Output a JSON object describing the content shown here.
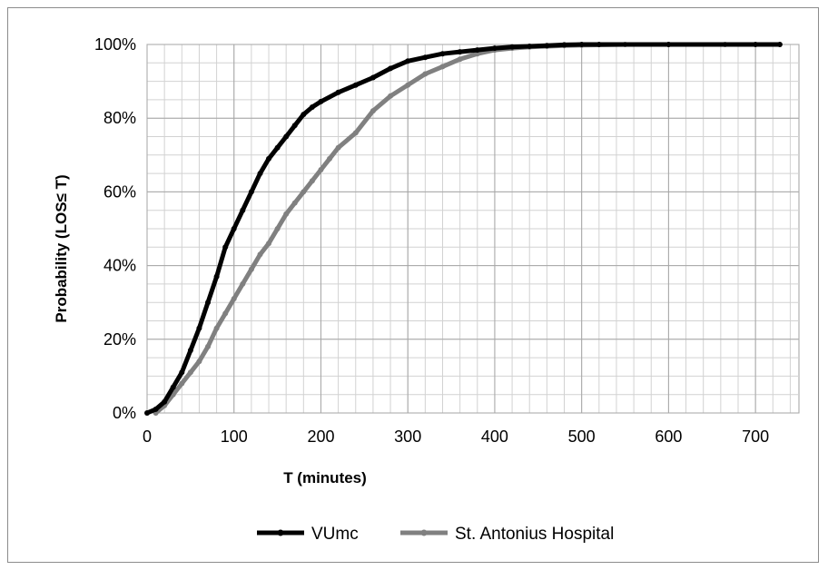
{
  "chart_data": {
    "type": "line",
    "title": "",
    "xlabel": "T (minutes)",
    "ylabel": "Probability (LOS≤ T)",
    "xlim": [
      0,
      750
    ],
    "ylim": [
      0,
      1
    ],
    "x_ticks": [
      0,
      100,
      200,
      300,
      400,
      500,
      600,
      700
    ],
    "x_tick_labels": [
      "0",
      "100",
      "200",
      "300",
      "400",
      "500",
      "600",
      "700"
    ],
    "y_ticks": [
      0,
      0.2,
      0.4,
      0.6,
      0.8,
      1.0
    ],
    "y_tick_labels": [
      "0%",
      "20%",
      "40%",
      "60%",
      "80%",
      "100%"
    ],
    "grid": true,
    "legend_position": "bottom",
    "series": [
      {
        "name": "VUmc",
        "color": "#000000",
        "x": [
          0,
          10,
          20,
          30,
          40,
          50,
          60,
          70,
          80,
          90,
          100,
          110,
          120,
          130,
          140,
          150,
          160,
          170,
          180,
          190,
          200,
          220,
          240,
          260,
          280,
          300,
          320,
          340,
          360,
          380,
          400,
          420,
          440,
          460,
          480,
          500,
          520,
          600,
          700,
          728
        ],
        "y": [
          0.0,
          0.01,
          0.03,
          0.07,
          0.11,
          0.17,
          0.23,
          0.3,
          0.37,
          0.45,
          0.5,
          0.55,
          0.6,
          0.65,
          0.69,
          0.72,
          0.75,
          0.78,
          0.81,
          0.83,
          0.845,
          0.87,
          0.89,
          0.91,
          0.935,
          0.955,
          0.965,
          0.975,
          0.98,
          0.985,
          0.99,
          0.993,
          0.995,
          0.997,
          0.999,
          1.0,
          1.0,
          1.0,
          1.0,
          1.0
        ]
      },
      {
        "name": "St. Antonius Hospital",
        "color": "#808080",
        "x": [
          10,
          20,
          30,
          40,
          50,
          60,
          70,
          80,
          90,
          100,
          110,
          120,
          130,
          140,
          150,
          160,
          170,
          180,
          190,
          200,
          210,
          220,
          240,
          260,
          280,
          300,
          320,
          340,
          360,
          380,
          400,
          420,
          440,
          460,
          480,
          500,
          550,
          600,
          665
        ],
        "y": [
          0.0,
          0.02,
          0.05,
          0.08,
          0.11,
          0.14,
          0.18,
          0.23,
          0.27,
          0.31,
          0.35,
          0.39,
          0.43,
          0.46,
          0.5,
          0.54,
          0.57,
          0.6,
          0.63,
          0.66,
          0.69,
          0.72,
          0.76,
          0.82,
          0.86,
          0.89,
          0.92,
          0.94,
          0.96,
          0.975,
          0.985,
          0.99,
          0.993,
          0.995,
          0.997,
          0.998,
          1.0,
          1.0,
          1.0
        ]
      }
    ]
  }
}
